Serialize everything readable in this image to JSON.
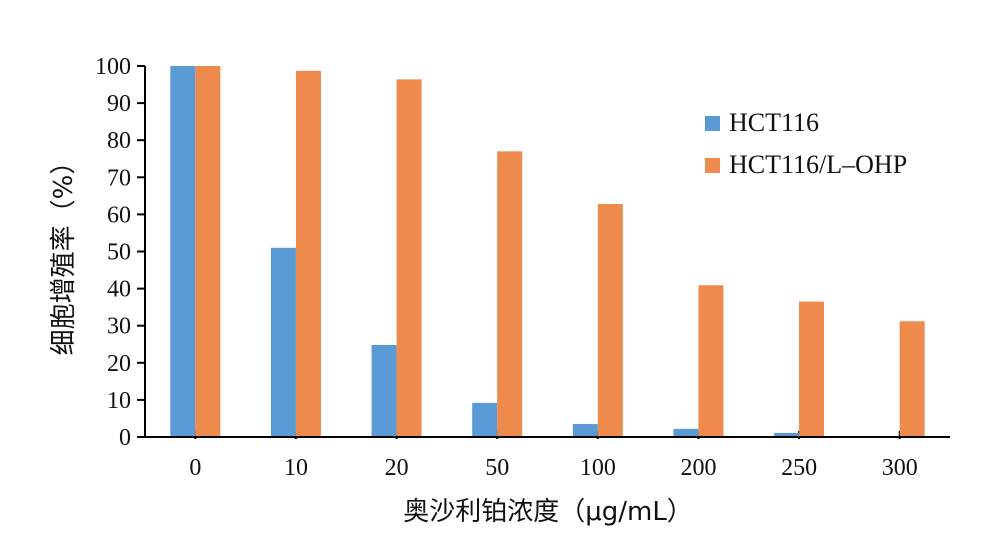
{
  "chart_data": {
    "type": "bar",
    "categories": [
      "0",
      "10",
      "20",
      "50",
      "100",
      "200",
      "250",
      "300"
    ],
    "series": [
      {
        "name": "HCT116",
        "color": "#5B9BD5",
        "values": [
          100,
          51,
          24.8,
          9.2,
          3.5,
          2.2,
          1.1,
          0
        ]
      },
      {
        "name": "HCT116/L–OHP",
        "color": "#ED8A4C",
        "values": [
          100,
          98.7,
          96.4,
          77,
          62.8,
          40.9,
          36.5,
          31.2
        ]
      }
    ],
    "xlabel": "奥沙利铂浓度（μg/mL）",
    "ylabel": "细胞增殖率（%）",
    "ylim": [
      0,
      100
    ],
    "yticks": [
      0,
      10,
      20,
      30,
      40,
      50,
      60,
      70,
      80,
      90,
      100
    ],
    "grid": false,
    "legend_position": "right"
  }
}
